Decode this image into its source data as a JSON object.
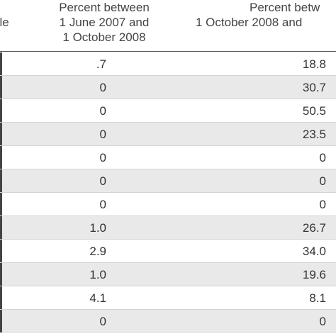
{
  "table": {
    "headers": [
      {
        "lines": [
          "ale"
        ]
      },
      {
        "lines": [
          "Percent between",
          "1 June 2007 and",
          "1 October 2008"
        ]
      },
      {
        "lines": [
          "Percent betw",
          "1 October 2008 and"
        ]
      }
    ],
    "rows": [
      {
        "col1": ".7",
        "col2": "18.8"
      },
      {
        "col1": "0",
        "col2": "30.7"
      },
      {
        "col1": "0",
        "col2": "50.5"
      },
      {
        "col1": "0",
        "col2": "23.5"
      },
      {
        "col1": "0",
        "col2": "0"
      },
      {
        "col1": "0",
        "col2": "0"
      },
      {
        "col1": "0",
        "col2": "0"
      },
      {
        "col1": "1.0",
        "col2": "26.7"
      },
      {
        "col1": "2.9",
        "col2": "34.0"
      },
      {
        "col1": "1.0",
        "col2": "19.6"
      },
      {
        "col1": "4.1",
        "col2": "8.1"
      },
      {
        "col1": "0",
        "col2": "0"
      }
    ]
  }
}
